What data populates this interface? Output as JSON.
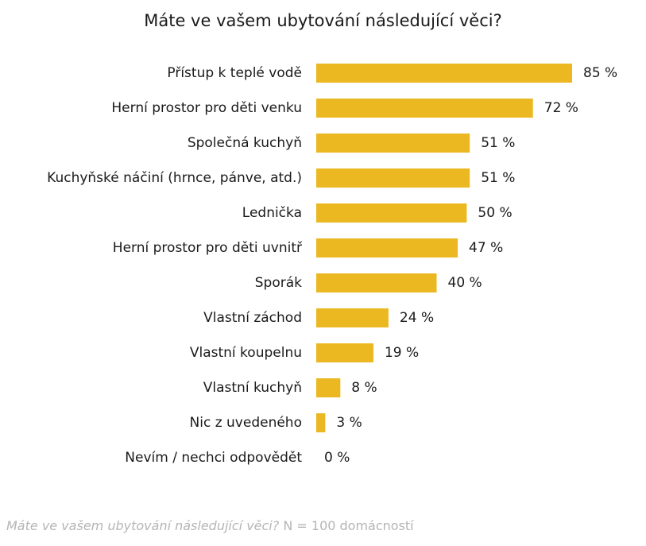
{
  "chart_data": {
    "type": "bar",
    "orientation": "horizontal",
    "title": "Máte ve vašem ubytování následující věci?",
    "categories": [
      "Přístup k teplé vodě",
      "Herní prostor pro děti venku",
      "Společná kuchyň",
      "Kuchyňské náčiní (hrnce, pánve, atd.)",
      "Lednička",
      "Herní prostor pro děti uvnitř",
      "Sporák",
      "Vlastní záchod",
      "Vlastní koupelnu",
      "Vlastní kuchyň",
      "Nic z uvedeného",
      "Nevím / nechci odpovědět"
    ],
    "values": [
      85,
      72,
      51,
      51,
      50,
      47,
      40,
      24,
      19,
      8,
      3,
      0
    ],
    "value_labels": [
      "85 %",
      "72 %",
      "51 %",
      "51 %",
      "50 %",
      "47 %",
      "40 %",
      "24 %",
      "19 %",
      "8 %",
      "3 %",
      "0 %"
    ],
    "unit": "%",
    "xlim": [
      0,
      100
    ],
    "grid": false,
    "legend": "none",
    "bar_color": "#ebb821"
  },
  "caption": {
    "question": "Máte ve vašem ubytování následující věci?",
    "sample": " N = 100 domácností"
  }
}
